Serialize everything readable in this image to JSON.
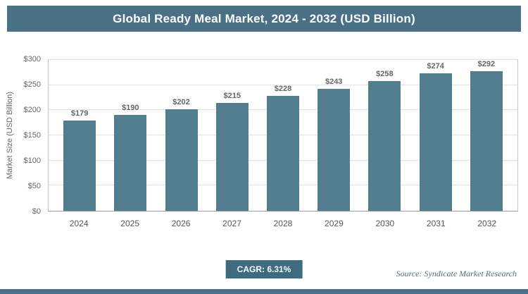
{
  "header": {
    "title": "Global Ready Meal Market, 2024 - 2032 (USD Billion)"
  },
  "chart_data": {
    "type": "bar",
    "title": "Global Ready Meal Market, 2024 - 2032 (USD Billion)",
    "categories": [
      "2024",
      "2025",
      "2026",
      "2027",
      "2028",
      "2029",
      "2030",
      "2031",
      "2032"
    ],
    "values": [
      179,
      190,
      202,
      215,
      228,
      243,
      258,
      274,
      292
    ],
    "value_labels": [
      "$179",
      "$190",
      "$202",
      "$215",
      "$228",
      "$243",
      "$258",
      "$274",
      "$292"
    ],
    "xlabel": "",
    "ylabel": "Market Size (USD Billion)",
    "ylim": [
      0,
      300
    ],
    "yticks": [
      "$0",
      "$50",
      "$100",
      "$150",
      "$200",
      "$250",
      "$300"
    ],
    "grid": true,
    "legend": "none"
  },
  "footer": {
    "cagr_label": "CAGR: 6.31%",
    "source": "Source: Syndicate Market Research"
  },
  "colors": {
    "header_bg": "#4a7086",
    "bar_color": "#527d8e",
    "badge_bg": "#3e6b80",
    "gridline": "#e2e2e2",
    "text_gray": "#666666"
  }
}
